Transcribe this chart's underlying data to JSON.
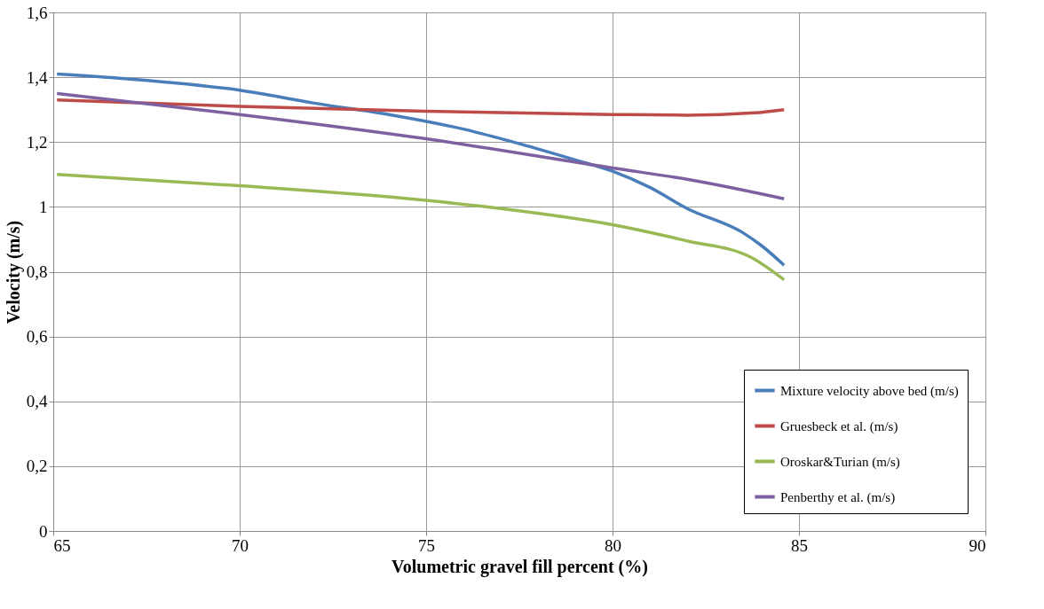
{
  "chart_data": {
    "type": "line",
    "xlabel": "Volumetric gravel fill percent (%)",
    "ylabel": "Velocity  (m/s)",
    "xlim": [
      65,
      90
    ],
    "xticks": [
      65,
      70,
      75,
      80,
      85,
      90
    ],
    "ylim": [
      0,
      1.6
    ],
    "yticks": [
      {
        "value": 0,
        "label": "0"
      },
      {
        "value": 0.2,
        "label": "0,2"
      },
      {
        "value": 0.4,
        "label": "0,4"
      },
      {
        "value": 0.6,
        "label": "0,6"
      },
      {
        "value": 0.8,
        "label": "0,8"
      },
      {
        "value": 1,
        "label": "1"
      },
      {
        "value": 1.2,
        "label": "1,2"
      },
      {
        "value": 1.4,
        "label": "1,4"
      },
      {
        "value": 1.6,
        "label": "1,6"
      }
    ],
    "grid": true,
    "legend": "bottom right",
    "marker": "none",
    "line_style": "solid",
    "series": [
      {
        "name": "Mixture velocity above bed (m/s)",
        "color": "#4a7ebb",
        "x": [
          65.1,
          67,
          70,
          72,
          74,
          76,
          77.5,
          79,
          80,
          81,
          82,
          83.5,
          84,
          84.6
        ],
        "values": [
          1.41,
          1.395,
          1.36,
          1.32,
          1.285,
          1.24,
          1.195,
          1.145,
          1.11,
          1.06,
          0.995,
          0.92,
          0.88,
          0.82
        ]
      },
      {
        "name": "Gruesbeck et al. (m/s)",
        "color": "#be4b48",
        "x": [
          65.1,
          70,
          75,
          80,
          82,
          83.8,
          84.6
        ],
        "values": [
          1.33,
          1.31,
          1.295,
          1.285,
          1.283,
          1.29,
          1.3
        ]
      },
      {
        "name": "Oroskar&Turian (m/s)",
        "color": "#98b954",
        "x": [
          65.1,
          70,
          75,
          77,
          80,
          82,
          83.7,
          84.6
        ],
        "values": [
          1.1,
          1.065,
          1.02,
          0.995,
          0.945,
          0.895,
          0.845,
          0.775
        ]
      },
      {
        "name": "Penberthy et al. (m/s)",
        "color": "#7d60a0",
        "x": [
          65.1,
          70,
          75,
          80,
          82,
          84.6
        ],
        "values": [
          1.35,
          1.285,
          1.21,
          1.12,
          1.085,
          1.025
        ]
      }
    ]
  }
}
